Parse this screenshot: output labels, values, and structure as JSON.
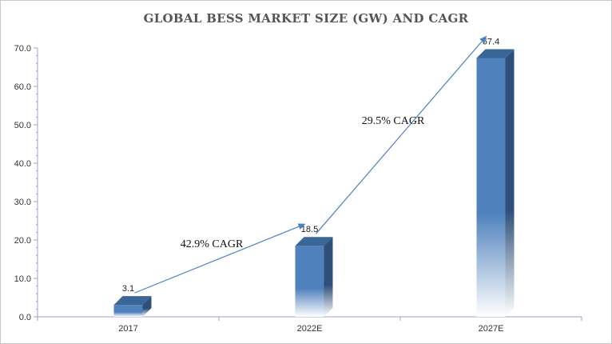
{
  "chart_data": {
    "type": "bar",
    "title": "GLOBAL BESS MARKET SIZE (GW) AND CAGR",
    "categories": [
      "2017",
      "2022E",
      "2027E"
    ],
    "values": [
      3.1,
      18.5,
      67.4
    ],
    "value_labels": [
      "3.1",
      "18.5",
      "67.4"
    ],
    "ylim": [
      0,
      70
    ],
    "yticks": [
      "0.0",
      "10.0",
      "20.0",
      "30.0",
      "40.0",
      "50.0",
      "60.0",
      "70.0"
    ],
    "xlabel": "",
    "ylabel": "",
    "grid": false,
    "legend": "none",
    "annotations": [
      {
        "text": "42.9% CAGR",
        "from_category": "2017",
        "to_category": "2022E"
      },
      {
        "text": "29.5% CAGR",
        "from_category": "2022E",
        "to_category": "2027E"
      }
    ],
    "colors": {
      "bar_front": "#4f81bd",
      "bar_side": "#2e4f7a",
      "bar_top": "#3a6597",
      "arrow": "#4a7fc0",
      "axis": "#a0a0c8"
    }
  }
}
